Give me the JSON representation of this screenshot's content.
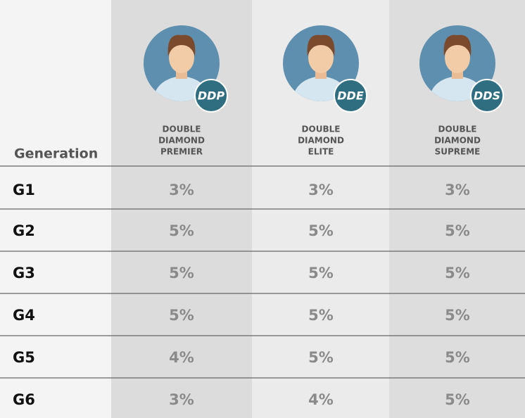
{
  "header": {
    "generation_label": "Generation"
  },
  "columns": [
    {
      "badge": "DDP",
      "name_lines": [
        "DOUBLE",
        "DIAMOND",
        "PREMIER"
      ]
    },
    {
      "badge": "DDE",
      "name_lines": [
        "DOUBLE",
        "DIAMOND",
        "ELITE"
      ]
    },
    {
      "badge": "DDS",
      "name_lines": [
        "DOUBLE",
        "DIAMOND",
        "SUPREME"
      ]
    }
  ],
  "rows": [
    {
      "label": "G1",
      "values": [
        "3%",
        "3%",
        "3%"
      ]
    },
    {
      "label": "G2",
      "values": [
        "5%",
        "5%",
        "5%"
      ]
    },
    {
      "label": "G3",
      "values": [
        "5%",
        "5%",
        "5%"
      ]
    },
    {
      "label": "G4",
      "values": [
        "5%",
        "5%",
        "5%"
      ]
    },
    {
      "label": "G5",
      "values": [
        "4%",
        "5%",
        "5%"
      ]
    },
    {
      "label": "G6",
      "values": [
        "3%",
        "4%",
        "5%"
      ]
    }
  ]
}
